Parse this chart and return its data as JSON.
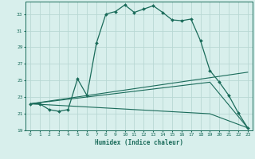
{
  "xlabel": "Humidex (Indice chaleur)",
  "bg_color": "#d8efec",
  "line_color": "#1a6b5a",
  "grid_color": "#b8d8d4",
  "xlim": [
    -0.5,
    23.5
  ],
  "ylim": [
    19,
    34.5
  ],
  "xticks": [
    0,
    1,
    2,
    3,
    4,
    5,
    6,
    7,
    8,
    9,
    10,
    11,
    12,
    13,
    14,
    15,
    16,
    17,
    18,
    19,
    20,
    21,
    22,
    23
  ],
  "yticks": [
    19,
    21,
    23,
    25,
    27,
    29,
    31,
    33
  ],
  "main_x": [
    0,
    1,
    2,
    3,
    4,
    5,
    6,
    7,
    8,
    9,
    10,
    11,
    12,
    13,
    14,
    15,
    16,
    17,
    18,
    19,
    20,
    21,
    22,
    23
  ],
  "main_y": [
    22.2,
    22.2,
    21.5,
    21.3,
    21.5,
    25.2,
    23.2,
    29.5,
    33.0,
    33.3,
    34.1,
    33.2,
    33.6,
    34.0,
    33.2,
    32.3,
    32.2,
    32.4,
    29.8,
    26.2,
    24.8,
    23.2,
    21.1,
    19.3
  ],
  "line2_x": [
    0,
    23
  ],
  "line2_y": [
    22.2,
    26.0
  ],
  "line3_x": [
    0,
    19,
    23
  ],
  "line3_y": [
    22.2,
    24.8,
    19.3
  ],
  "line4_x": [
    0,
    19,
    23
  ],
  "line4_y": [
    22.2,
    21.0,
    19.3
  ]
}
